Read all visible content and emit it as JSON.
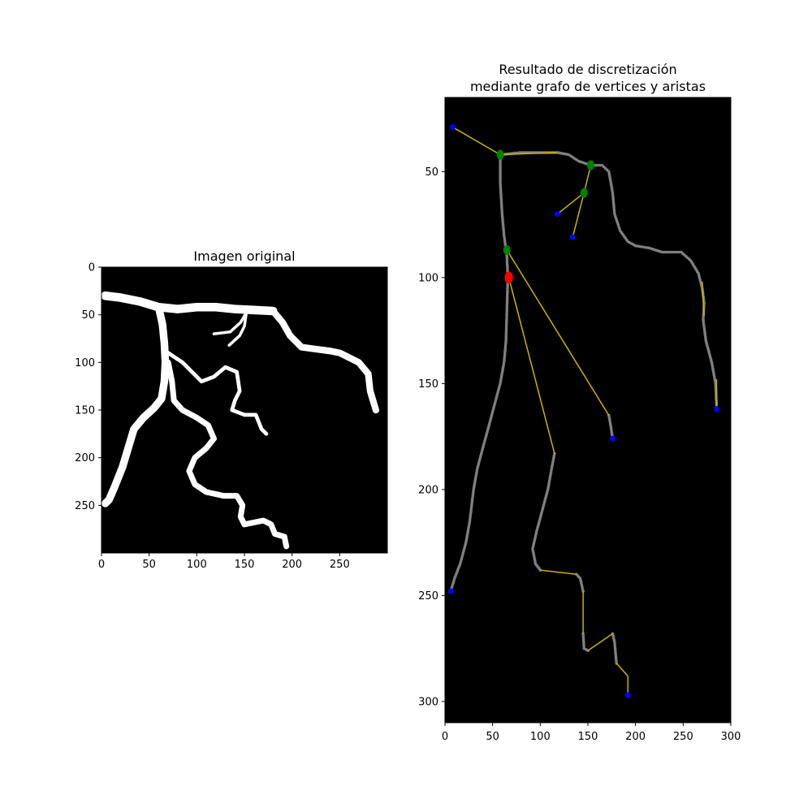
{
  "colors": {
    "background": "#000000",
    "vessel": "#ffffff",
    "edge": "#c8b400",
    "pixel_point": "#808080",
    "endpoint": "#0000ff",
    "junction": "#008000",
    "root": "#ff0000"
  },
  "chart_data": [
    {
      "type": "image",
      "title": "Imagen original",
      "xlim": [
        0,
        300
      ],
      "ylim": [
        300,
        0
      ],
      "x_ticks": [
        0,
        50,
        100,
        150,
        200,
        250
      ],
      "y_ticks": [
        0,
        50,
        100,
        150,
        200,
        250
      ],
      "vessels": [
        {
          "width": 9,
          "points": [
            [
              4,
              30
            ],
            [
              20,
              32
            ],
            [
              40,
              36
            ],
            [
              60,
              42
            ],
            [
              80,
              44
            ],
            [
              100,
              42
            ],
            [
              120,
              42
            ],
            [
              140,
              44
            ],
            [
              160,
              45
            ],
            [
              180,
              46
            ]
          ]
        },
        {
          "width": 7,
          "points": [
            [
              180,
              46
            ],
            [
              190,
              58
            ],
            [
              198,
              72
            ],
            [
              210,
              84
            ],
            [
              225,
              86
            ],
            [
              240,
              88
            ],
            [
              250,
              90
            ],
            [
              270,
              100
            ],
            [
              280,
              112
            ],
            [
              282,
              130
            ],
            [
              285,
              140
            ],
            [
              288,
              150
            ]
          ]
        },
        {
          "width": 8,
          "points": [
            [
              60,
              42
            ],
            [
              64,
              60
            ],
            [
              66,
              80
            ],
            [
              67,
              100
            ],
            [
              66,
              120
            ],
            [
              63,
              138
            ],
            [
              55,
              148
            ],
            [
              44,
              158
            ],
            [
              34,
              170
            ],
            [
              28,
              190
            ],
            [
              22,
              210
            ],
            [
              14,
              230
            ],
            [
              8,
              244
            ],
            [
              4,
              248
            ]
          ]
        },
        {
          "width": 4,
          "points": [
            [
              67,
              88
            ],
            [
              85,
              100
            ],
            [
              95,
              110
            ],
            [
              105,
              120
            ],
            [
              118,
              115
            ],
            [
              130,
              105
            ],
            [
              142,
              110
            ],
            [
              145,
              130
            ],
            [
              140,
              140
            ],
            [
              137,
              150
            ],
            [
              150,
              155
            ],
            [
              162,
              155
            ],
            [
              168,
              170
            ],
            [
              173,
              175
            ]
          ]
        },
        {
          "width": 6,
          "points": [
            [
              70,
              100
            ],
            [
              74,
              120
            ],
            [
              76,
              140
            ],
            [
              85,
              150
            ],
            [
              100,
              158
            ],
            [
              112,
              166
            ],
            [
              118,
              180
            ],
            [
              110,
              190
            ],
            [
              98,
              200
            ],
            [
              92,
              214
            ],
            [
              98,
              228
            ],
            [
              110,
              236
            ],
            [
              128,
              240
            ],
            [
              142,
              240
            ],
            [
              148,
              250
            ],
            [
              146,
              262
            ],
            [
              150,
              270
            ],
            [
              160,
              268
            ],
            [
              170,
              266
            ],
            [
              178,
              270
            ],
            [
              182,
              280
            ],
            [
              192,
              283
            ],
            [
              194,
              293
            ]
          ]
        },
        {
          "width": 3,
          "points": [
            [
              152,
              48
            ],
            [
              146,
              58
            ],
            [
              135,
              68
            ],
            [
              118,
              70
            ]
          ]
        },
        {
          "width": 3,
          "points": [
            [
              152,
              48
            ],
            [
              150,
              62
            ],
            [
              145,
              72
            ],
            [
              134,
              82
            ]
          ]
        }
      ]
    },
    {
      "type": "graph",
      "title": "Resultado de discretización\nmediante grafo de vertices y aristas",
      "xlim": [
        0,
        300
      ],
      "ylim": [
        310,
        15
      ],
      "x_ticks": [
        0,
        50,
        100,
        150,
        200,
        250,
        300
      ],
      "y_ticks": [
        50,
        100,
        150,
        200,
        250,
        300
      ],
      "pixel_paths": [
        [
          [
            58,
            42
          ],
          [
            58,
            55
          ],
          [
            60,
            70
          ],
          [
            62,
            80
          ],
          [
            65,
            90
          ],
          [
            66,
            100
          ],
          [
            65,
            115
          ],
          [
            64,
            130
          ],
          [
            62,
            140
          ],
          [
            58,
            150
          ],
          [
            52,
            160
          ],
          [
            46,
            170
          ],
          [
            40,
            180
          ],
          [
            34,
            190
          ],
          [
            30,
            200
          ],
          [
            26,
            215
          ],
          [
            22,
            225
          ],
          [
            16,
            235
          ],
          [
            10,
            242
          ],
          [
            6,
            248
          ]
        ],
        [
          [
            58,
            42
          ],
          [
            80,
            41
          ],
          [
            100,
            41
          ],
          [
            118,
            41
          ],
          [
            130,
            42
          ],
          [
            140,
            45
          ],
          [
            153,
            47
          ],
          [
            165,
            47
          ],
          [
            172,
            50
          ],
          [
            176,
            60
          ],
          [
            178,
            70
          ],
          [
            184,
            78
          ],
          [
            192,
            83
          ],
          [
            200,
            85
          ],
          [
            214,
            86
          ],
          [
            228,
            88
          ],
          [
            248,
            88
          ],
          [
            258,
            92
          ],
          [
            266,
            98
          ],
          [
            270,
            105
          ],
          [
            272,
            112
          ],
          [
            271,
            120
          ],
          [
            274,
            130
          ],
          [
            280,
            140
          ],
          [
            284,
            150
          ],
          [
            285,
            160
          ]
        ],
        [
          [
            172,
            165
          ],
          [
            174,
            170
          ],
          [
            176,
            176
          ]
        ],
        [
          [
            115,
            183
          ],
          [
            112,
            190
          ],
          [
            108,
            200
          ],
          [
            102,
            210
          ],
          [
            96,
            220
          ],
          [
            92,
            228
          ],
          [
            95,
            235
          ],
          [
            100,
            238
          ]
        ],
        [
          [
            138,
            240
          ],
          [
            142,
            242
          ],
          [
            145,
            248
          ]
        ],
        [
          [
            145,
            268
          ],
          [
            146,
            275
          ],
          [
            150,
            276
          ]
        ],
        [
          [
            176,
            268
          ],
          [
            178,
            272
          ],
          [
            180,
            282
          ]
        ]
      ],
      "edges": [
        [
          [
            8,
            29
          ],
          [
            58,
            42
          ]
        ],
        [
          [
            58,
            42
          ],
          [
            118,
            41
          ]
        ],
        [
          [
            153,
            47
          ],
          [
            146,
            60
          ]
        ],
        [
          [
            146,
            60
          ],
          [
            118,
            70
          ]
        ],
        [
          [
            146,
            60
          ],
          [
            134,
            81
          ]
        ],
        [
          [
            65,
            87
          ],
          [
            172,
            165
          ]
        ],
        [
          [
            67,
            100
          ],
          [
            115,
            183
          ]
        ],
        [
          [
            100,
            238
          ],
          [
            138,
            240
          ]
        ],
        [
          [
            145,
            248
          ],
          [
            145,
            268
          ]
        ],
        [
          [
            150,
            276
          ],
          [
            176,
            268
          ]
        ],
        [
          [
            180,
            282
          ],
          [
            192,
            288
          ]
        ],
        [
          [
            192,
            288
          ],
          [
            192,
            297
          ]
        ],
        [
          [
            270,
            102
          ],
          [
            272,
            118
          ]
        ],
        [
          [
            285,
            148
          ],
          [
            285,
            162
          ]
        ]
      ],
      "endpoints": [
        [
          8,
          29
        ],
        [
          118,
          70
        ],
        [
          134,
          81
        ],
        [
          176,
          176
        ],
        [
          285,
          162
        ],
        [
          6,
          248
        ],
        [
          192,
          297
        ]
      ],
      "junctions": [
        [
          58,
          42
        ],
        [
          153,
          47
        ],
        [
          146,
          60
        ],
        [
          65,
          87
        ]
      ],
      "root": [
        [
          67,
          100
        ]
      ]
    }
  ]
}
